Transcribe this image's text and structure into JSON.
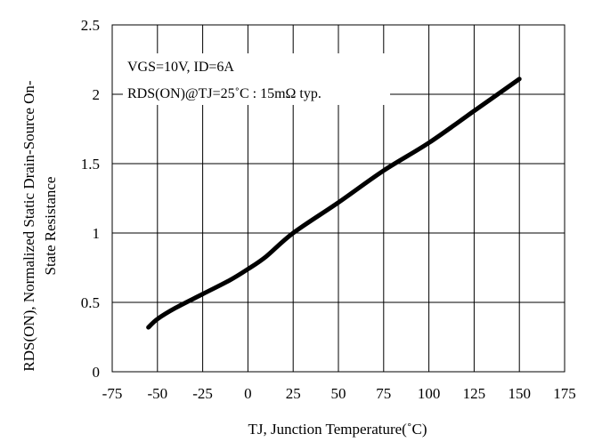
{
  "chart_data": {
    "type": "line",
    "xlabel": "TJ, Junction Temperature(˚C)",
    "ylabel_line1": "RDS(ON), Normalized Static Drain-Source On-",
    "ylabel_line2": "State Resistance",
    "xlim": [
      -75,
      175
    ],
    "ylim": [
      0,
      2.5
    ],
    "x_ticks": [
      -75,
      -50,
      -25,
      0,
      25,
      50,
      75,
      100,
      125,
      150,
      175
    ],
    "y_ticks": [
      0,
      0.5,
      1,
      1.5,
      2,
      2.5
    ],
    "x_tick_labels": [
      "-75",
      "-50",
      "-25",
      "0",
      "25",
      "50",
      "75",
      "100",
      "125",
      "150",
      "175"
    ],
    "y_tick_labels": [
      "0",
      "0.5",
      "1",
      "1.5",
      "2",
      "2.5"
    ],
    "grid": true,
    "annotation_line1": "VGS=10V, ID=6A",
    "annotation_line2": "RDS(ON)@TJ=25˚C : 15mΩ typ.",
    "series": [
      {
        "x": [
          -55,
          -50,
          -40,
          -25,
          -10,
          0,
          10,
          25,
          50,
          75,
          100,
          125,
          150
        ],
        "y": [
          0.32,
          0.38,
          0.46,
          0.56,
          0.66,
          0.74,
          0.83,
          1.0,
          1.22,
          1.45,
          1.65,
          1.88,
          2.11
        ]
      }
    ],
    "line_color": "#000000"
  }
}
